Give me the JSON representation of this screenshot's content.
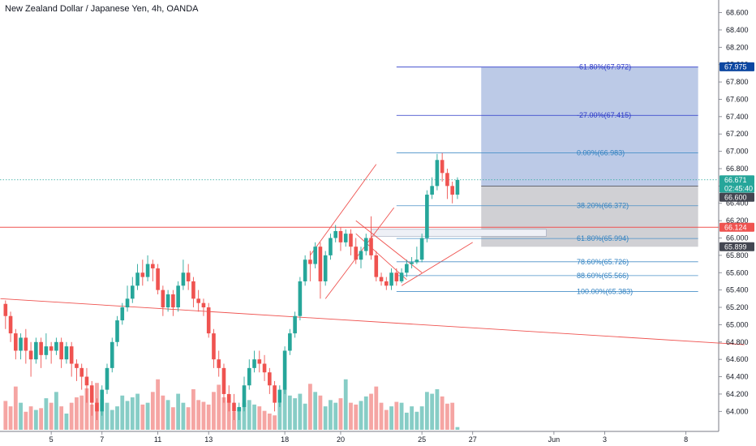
{
  "chart_data": {
    "type": "candlestick",
    "title": "New Zealand Dollar / Japanese Yen, 4h, OANDA",
    "ylim": [
      63.9,
      68.68
    ],
    "y_ticks": [
      "68.600",
      "68.400",
      "68.200",
      "68.000",
      "67.800",
      "67.600",
      "67.400",
      "67.200",
      "67.000",
      "66.800",
      "66.600",
      "66.400",
      "66.200",
      "66.000",
      "65.800",
      "65.600",
      "65.400",
      "65.200",
      "65.000",
      "64.800",
      "64.600",
      "64.400",
      "64.200",
      "64.000"
    ],
    "x_ticks": [
      {
        "label": "5",
        "index": 9
      },
      {
        "label": "7",
        "index": 19
      },
      {
        "label": "11",
        "index": 30
      },
      {
        "label": "13",
        "index": 40
      },
      {
        "label": "18",
        "index": 55
      },
      {
        "label": "20",
        "index": 66
      },
      {
        "label": "25",
        "index": 82
      },
      {
        "label": "27",
        "index": 92
      },
      {
        "label": "Jun",
        "index": 108
      },
      {
        "label": "3",
        "index": 118
      },
      {
        "label": "8",
        "index": 134
      }
    ],
    "candles": [
      [
        65.24,
        65.1,
        65.28,
        64.95
      ],
      [
        65.1,
        64.9,
        65.15,
        64.8
      ],
      [
        64.9,
        64.7,
        64.95,
        64.6
      ],
      [
        64.7,
        64.85,
        64.9,
        64.6
      ],
      [
        64.85,
        64.7,
        64.95,
        64.55
      ],
      [
        64.7,
        64.6,
        64.8,
        64.4
      ],
      [
        64.6,
        64.8,
        64.85,
        64.55
      ],
      [
        64.8,
        64.65,
        64.85,
        64.5
      ],
      [
        64.65,
        64.75,
        64.9,
        64.6
      ],
      [
        64.75,
        64.7,
        64.8,
        64.55
      ],
      [
        64.7,
        64.8,
        64.85,
        64.65
      ],
      [
        64.8,
        64.6,
        64.85,
        64.5
      ],
      [
        64.6,
        64.75,
        64.8,
        64.55
      ],
      [
        64.75,
        64.55,
        64.8,
        64.4
      ],
      [
        64.55,
        64.5,
        64.6,
        64.35
      ],
      [
        64.5,
        64.4,
        64.55,
        64.25
      ],
      [
        64.4,
        64.3,
        64.5,
        64.1
      ],
      [
        64.3,
        64.1,
        64.35,
        63.95
      ],
      [
        64.1,
        64.0,
        64.15,
        63.9
      ],
      [
        64.0,
        64.25,
        64.3,
        63.95
      ],
      [
        64.25,
        64.5,
        64.55,
        64.2
      ],
      [
        64.5,
        64.8,
        64.85,
        64.45
      ],
      [
        64.8,
        65.05,
        65.1,
        64.75
      ],
      [
        65.05,
        65.2,
        65.25,
        65.0
      ],
      [
        65.2,
        65.3,
        65.45,
        65.15
      ],
      [
        65.3,
        65.45,
        65.55,
        65.25
      ],
      [
        65.45,
        65.6,
        65.7,
        65.4
      ],
      [
        65.6,
        65.55,
        65.75,
        65.45
      ],
      [
        65.55,
        65.7,
        65.8,
        65.5
      ],
      [
        65.7,
        65.65,
        65.75,
        65.5
      ],
      [
        65.65,
        65.4,
        65.7,
        65.35
      ],
      [
        65.4,
        65.2,
        65.45,
        65.1
      ],
      [
        65.2,
        65.35,
        65.4,
        65.15
      ],
      [
        65.35,
        65.2,
        65.4,
        65.1
      ],
      [
        65.2,
        65.45,
        65.5,
        65.15
      ],
      [
        65.45,
        65.6,
        65.75,
        65.4
      ],
      [
        65.6,
        65.5,
        65.7,
        65.4
      ],
      [
        65.5,
        65.3,
        65.55,
        65.2
      ],
      [
        65.3,
        65.25,
        65.4,
        65.15
      ],
      [
        65.25,
        65.2,
        65.3,
        65.1
      ],
      [
        65.2,
        64.9,
        65.25,
        64.85
      ],
      [
        64.9,
        64.6,
        64.95,
        64.5
      ],
      [
        64.6,
        64.5,
        64.7,
        64.4
      ],
      [
        64.5,
        64.2,
        64.55,
        64.1
      ],
      [
        64.2,
        64.1,
        64.3,
        64.0
      ],
      [
        64.1,
        64.0,
        64.2,
        63.9
      ],
      [
        64.0,
        64.05,
        64.1,
        63.9
      ],
      [
        64.05,
        64.3,
        64.4,
        64.0
      ],
      [
        64.3,
        64.5,
        64.6,
        64.25
      ],
      [
        64.5,
        64.6,
        64.7,
        64.45
      ],
      [
        64.6,
        64.55,
        64.7,
        64.45
      ],
      [
        64.55,
        64.45,
        64.65,
        64.35
      ],
      [
        64.45,
        64.3,
        64.5,
        64.2
      ],
      [
        64.3,
        64.1,
        64.35,
        64.0
      ],
      [
        64.1,
        64.25,
        64.3,
        64.05
      ],
      [
        64.25,
        64.7,
        64.75,
        64.2
      ],
      [
        64.7,
        64.9,
        64.95,
        64.65
      ],
      [
        64.9,
        65.1,
        65.15,
        64.85
      ],
      [
        65.1,
        65.5,
        65.55,
        65.05
      ],
      [
        65.5,
        65.75,
        65.8,
        65.45
      ],
      [
        65.75,
        65.7,
        65.85,
        65.5
      ],
      [
        65.7,
        65.9,
        65.95,
        65.65
      ],
      [
        65.9,
        65.5,
        65.95,
        65.3
      ],
      [
        65.5,
        65.8,
        65.85,
        65.45
      ],
      [
        65.8,
        66.0,
        66.05,
        65.75
      ],
      [
        66.0,
        66.08,
        66.15,
        65.95
      ],
      [
        66.08,
        65.95,
        66.12,
        65.85
      ],
      [
        65.95,
        66.05,
        66.1,
        65.9
      ],
      [
        66.05,
        65.9,
        66.1,
        65.8
      ],
      [
        65.9,
        65.75,
        66.0,
        65.7
      ],
      [
        65.75,
        65.85,
        65.9,
        65.65
      ],
      [
        65.85,
        66.0,
        66.05,
        65.8
      ],
      [
        66.0,
        65.8,
        66.25,
        65.75
      ],
      [
        65.8,
        65.55,
        65.85,
        65.5
      ],
      [
        65.55,
        65.5,
        65.6,
        65.45
      ],
      [
        65.5,
        65.45,
        65.55,
        65.4
      ],
      [
        65.45,
        65.6,
        65.65,
        65.4
      ],
      [
        65.6,
        65.5,
        65.65,
        65.45
      ],
      [
        65.5,
        65.6,
        65.65,
        65.48
      ],
      [
        65.6,
        65.7,
        65.75,
        65.55
      ],
      [
        65.7,
        65.72,
        65.78,
        65.65
      ],
      [
        65.72,
        65.75,
        65.9,
        65.7
      ],
      [
        65.75,
        66.0,
        66.05,
        65.72
      ],
      [
        66.0,
        66.5,
        66.55,
        65.95
      ],
      [
        66.5,
        66.6,
        66.7,
        66.45
      ],
      [
        66.6,
        66.9,
        66.97,
        66.55
      ],
      [
        66.9,
        66.75,
        66.98,
        66.65
      ],
      [
        66.75,
        66.6,
        66.8,
        66.45
      ],
      [
        66.6,
        66.5,
        66.65,
        66.4
      ],
      [
        66.5,
        66.67,
        66.7,
        66.45
      ]
    ],
    "volume_scale": [
      0,
      900
    ],
    "volumes": [
      320,
      260,
      480,
      300,
      200,
      260,
      220,
      240,
      350,
      300,
      420,
      260,
      180,
      300,
      360,
      380,
      460,
      280,
      520,
      340,
      300,
      220,
      260,
      380,
      320,
      360,
      400,
      280,
      300,
      420,
      560,
      380,
      330,
      250,
      400,
      300,
      250,
      450,
      330,
      310,
      280,
      420,
      500,
      360,
      320,
      200,
      240,
      300,
      330,
      280,
      260,
      210,
      180,
      160,
      300,
      450,
      380,
      350,
      400,
      290,
      510,
      420,
      380,
      260,
      330,
      300,
      350,
      560,
      300,
      280,
      320,
      370,
      400,
      480,
      300,
      220,
      260,
      310,
      300,
      190,
      260,
      200,
      260,
      420,
      400,
      450,
      370,
      290,
      300,
      30
    ],
    "annotations": {
      "price_levels": [
        {
          "label": "-61.80%(67.972)",
          "value": 67.972
        },
        {
          "label": "-27.00%(67.415)",
          "value": 67.415
        },
        {
          "label": "0.00%(66.983)",
          "value": 66.983
        },
        {
          "label": "38.20%(66.372)",
          "value": 66.372
        },
        {
          "label": "61.80%(65.994)",
          "value": 65.994
        },
        {
          "label": "78.60%(65.726)",
          "value": 65.726
        },
        {
          "label": "88.60%(65.566)",
          "value": 65.566
        },
        {
          "label": "100.00%(65.383)",
          "value": 65.383
        }
      ],
      "resistance_level": 66.124,
      "target_top": 67.972,
      "position_entry": 66.6,
      "position_stop": 65.899,
      "last_price": 66.671
    },
    "price_tags": [
      {
        "label": "67.975",
        "value": 67.975,
        "color": "#0d47a1"
      },
      {
        "label": "66.671",
        "value": 66.671,
        "color": "#26a69a"
      },
      {
        "label": "02:45:40",
        "value": 66.575,
        "color": "#26a69a"
      },
      {
        "label": "66.600",
        "value": 66.47,
        "color": "#434651"
      },
      {
        "label": "66.124",
        "value": 66.124,
        "color": "#ef5350"
      },
      {
        "label": "65.899",
        "value": 65.899,
        "color": "#434651"
      }
    ],
    "colors": {
      "up": "#26a69a",
      "down": "#ef5350",
      "up_volume": "#87cdc6",
      "down_volume": "#f5a5a3",
      "fib_line": "#4a90c8",
      "fib_text": "#2f80c0",
      "fib_top": "#2a38c8",
      "target_fill": "#b8c7e6",
      "stop_fill": "#cdced2",
      "trend": "#ef5350"
    }
  }
}
